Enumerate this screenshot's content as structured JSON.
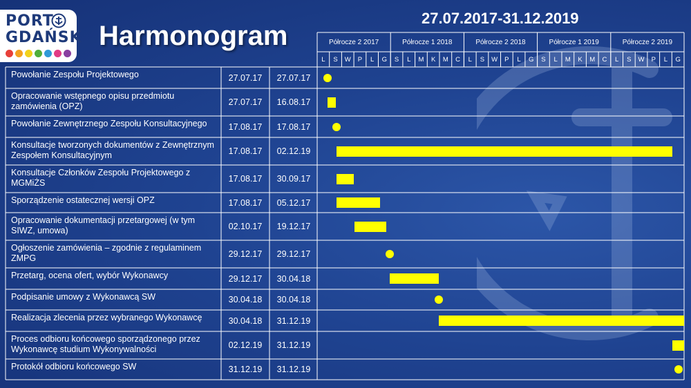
{
  "logo": {
    "line1": "PORT",
    "line2": "GDAŃSK",
    "dot_colors": [
      "#e8403a",
      "#f4a21f",
      "#f2d21b",
      "#4fae3b",
      "#2f9ad8",
      "#e23b84",
      "#8a3fa0"
    ]
  },
  "title": "Harmonogram",
  "date_range": "27.07.2017-31.12.2019",
  "colors": {
    "background": "#1f4391",
    "bar": "#ffff00",
    "grid": "#ffffff"
  },
  "chart_data": {
    "type": "gantt",
    "timeline_start": "2017-07-01",
    "timeline_end": "2019-12-31",
    "periods": [
      "Półrocze 2 2017",
      "Półrocze 1 2018",
      "Półrocze 2 2018",
      "Półrocze 1 2019",
      "Półrocze 2 2019"
    ],
    "months": [
      "L",
      "S",
      "W",
      "P",
      "L",
      "G",
      "S",
      "L",
      "M",
      "K",
      "M",
      "C",
      "L",
      "S",
      "W",
      "P",
      "L",
      "G",
      "S",
      "L",
      "M",
      "K",
      "M",
      "C",
      "L",
      "S",
      "W",
      "P",
      "L",
      "G"
    ],
    "tasks": [
      {
        "name": "Powołanie Zespołu Projektowego",
        "start_label": "27.07.17",
        "end_label": "27.07.17",
        "start": "2017-07-27",
        "end": "2017-07-27",
        "kind": "milestone"
      },
      {
        "name": "Opracowanie wstępnego opisu przedmiotu zamówienia (OPZ)",
        "start_label": "27.07.17",
        "end_label": "16.08.17",
        "start": "2017-07-27",
        "end": "2017-08-16",
        "kind": "bar"
      },
      {
        "name": "Powołanie Zewnętrznego Zespołu Konsultacyjnego",
        "start_label": "17.08.17",
        "end_label": "17.08.17",
        "start": "2017-08-17",
        "end": "2017-08-17",
        "kind": "milestone"
      },
      {
        "name": "Konsultacje tworzonych dokumentów z Zewnętrznym Zespołem Konsultacyjnym",
        "start_label": "17.08.17",
        "end_label": "02.12.19",
        "start": "2017-08-17",
        "end": "2019-12-02",
        "kind": "bar"
      },
      {
        "name": "Konsultacje Członków Zespołu Projektowego z MGMiŻS",
        "start_label": "17.08.17",
        "end_label": "30.09.17",
        "start": "2017-08-17",
        "end": "2017-09-30",
        "kind": "bar"
      },
      {
        "name": "Sporządzenie ostatecznej wersji OPZ",
        "start_label": "17.08.17",
        "end_label": "05.12.17",
        "start": "2017-08-17",
        "end": "2017-12-05",
        "kind": "bar"
      },
      {
        "name": "Opracowanie dokumentacji przetargowej (w tym SIWZ, umowa)",
        "start_label": "02.10.17",
        "end_label": "19.12.17",
        "start": "2017-10-02",
        "end": "2017-12-19",
        "kind": "bar"
      },
      {
        "name": "Ogłoszenie zamówienia – zgodnie z regulaminem ZMPG",
        "start_label": "29.12.17",
        "end_label": "29.12.17",
        "start": "2017-12-29",
        "end": "2017-12-29",
        "kind": "milestone"
      },
      {
        "name": "Przetarg, ocena ofert, wybór Wykonawcy",
        "start_label": "29.12.17",
        "end_label": "30.04.18",
        "start": "2017-12-29",
        "end": "2018-04-30",
        "kind": "bar"
      },
      {
        "name": "Podpisanie umowy z Wykonawcą SW",
        "start_label": "30.04.18",
        "end_label": "30.04.18",
        "start": "2018-04-30",
        "end": "2018-04-30",
        "kind": "milestone"
      },
      {
        "name": "Realizacja zlecenia przez wybranego Wykonawcę",
        "start_label": "30.04.18",
        "end_label": "31.12.19",
        "start": "2018-04-30",
        "end": "2019-12-31",
        "kind": "bar"
      },
      {
        "name": "Proces odbioru końcowego sporządzonego przez Wykonawcę studium Wykonywalności",
        "start_label": "02.12.19",
        "end_label": "31.12.19",
        "start": "2019-12-02",
        "end": "2019-12-31",
        "kind": "bar"
      },
      {
        "name": "Protokół odbioru końcowego SW",
        "start_label": "31.12.19",
        "end_label": "31.12.19",
        "start": "2019-12-31",
        "end": "2019-12-31",
        "kind": "milestone"
      }
    ]
  }
}
